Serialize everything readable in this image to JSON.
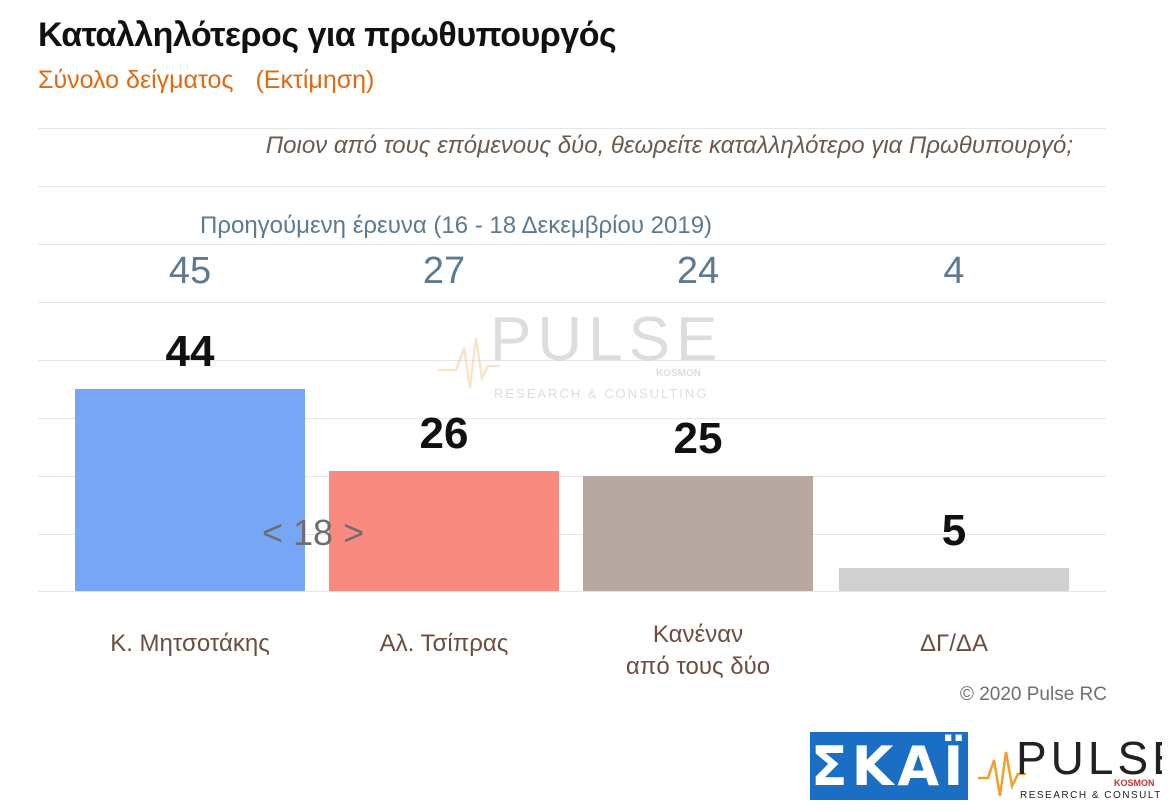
{
  "header": {
    "title": "Καταλληλότερος για πρωθυπουργός",
    "subtitle_part1": "Σύνολο δείγματος",
    "subtitle_part2": "(Εκτίμηση)"
  },
  "question": "Ποιον από τους επόμενους δύο, θεωρείτε καταλληλότερο για Πρωθυπουργό;",
  "previous_survey": {
    "label": "Προηγούμενη έρευνα  (16 - 18 Δεκεμβρίου  2019)",
    "values": [
      "45",
      "27",
      "24",
      "4"
    ]
  },
  "gap_note": "< 18 >",
  "footer": {
    "copyright": "© 2020 Pulse RC",
    "logo_skai": "ΣΚΑΪ",
    "logo_pulse": "PULSE",
    "logo_pulse_sub": "RESEARCH & CONSULTING",
    "logo_pulse_tag": "KOSMON"
  },
  "watermark": {
    "text": "PULSE",
    "sub": "RESEARCH & CONSULTING",
    "tag": "KOSMON"
  },
  "colors": {
    "mitsotakis": "#77a6f7",
    "tsipras": "#f98a80",
    "none": "#b8a8a2",
    "dk": "#d0d0d0"
  },
  "chart_data": {
    "type": "bar",
    "categories": [
      "Κ. Μητσοτάκης",
      "Αλ. Τσίπρας",
      "Κανέναν\nαπό τους δύο",
      "ΔΓ/ΔΑ"
    ],
    "values": [
      44,
      26,
      25,
      5
    ],
    "previous_values": [
      45,
      27,
      24,
      4
    ],
    "ylim": [
      0,
      50
    ],
    "grid": true,
    "legend": "none"
  }
}
